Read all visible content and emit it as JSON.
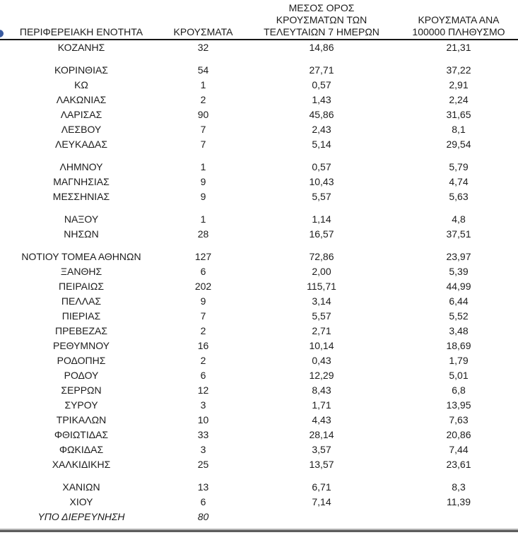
{
  "styles": {
    "header_rule_color": "#161616",
    "bottom_rule_light": "#b3b3b3",
    "bottom_rule_dark": "#5c5c5c",
    "bullet_color": "#3a5ba0"
  },
  "table": {
    "header": {
      "col1": "ΠΕΡΙΦΕΡΕΙΑΚΗ ΕΝΟΤΗΤΑ",
      "col2": "ΚΡΟΥΣΜΑΤΑ",
      "col3_lines": [
        "ΜΕΣΟΣ ΟΡΟΣ",
        "ΚΡΟΥΣΜΑΤΩΝ ΤΩΝ",
        "ΤΕΛΕΥΤΑΙΩΝ 7 ΗΜΕΡΩΝ"
      ],
      "col4_lines": [
        "ΚΡΟΥΣΜΑΤΑ ΑΝΑ",
        "100000 ΠΛΗΘΥΣΜΟ"
      ]
    },
    "groups": [
      {
        "rows": [
          {
            "region": "ΚΟΖΑΝΗΣ",
            "cases": "32",
            "avg7": "14,86",
            "per100k": "21,31"
          }
        ]
      },
      {
        "rows": [
          {
            "region": "ΚΟΡΙΝΘΙΑΣ",
            "cases": "54",
            "avg7": "27,71",
            "per100k": "37,22"
          },
          {
            "region": "ΚΩ",
            "cases": "1",
            "avg7": "0,57",
            "per100k": "2,91"
          },
          {
            "region": "ΛΑΚΩΝΙΑΣ",
            "cases": "2",
            "avg7": "1,43",
            "per100k": "2,24"
          },
          {
            "region": "ΛΑΡΙΣΑΣ",
            "cases": "90",
            "avg7": "45,86",
            "per100k": "31,65"
          },
          {
            "region": "ΛΕΣΒΟΥ",
            "cases": "7",
            "avg7": "2,43",
            "per100k": "8,1"
          },
          {
            "region": "ΛΕΥΚΑΔΑΣ",
            "cases": "7",
            "avg7": "5,14",
            "per100k": "29,54"
          }
        ]
      },
      {
        "rows": [
          {
            "region": "ΛΗΜΝΟΥ",
            "cases": "1",
            "avg7": "0,57",
            "per100k": "5,79"
          },
          {
            "region": "ΜΑΓΝΗΣΙΑΣ",
            "cases": "9",
            "avg7": "10,43",
            "per100k": "4,74"
          },
          {
            "region": "ΜΕΣΣΗΝΙΑΣ",
            "cases": "9",
            "avg7": "5,57",
            "per100k": "5,63"
          }
        ]
      },
      {
        "rows": [
          {
            "region": "ΝΑΞΟΥ",
            "cases": "1",
            "avg7": "1,14",
            "per100k": "4,8"
          },
          {
            "region": "ΝΗΣΩΝ",
            "cases": "28",
            "avg7": "16,57",
            "per100k": "37,51"
          }
        ]
      },
      {
        "rows": [
          {
            "region": "ΝΟΤΙΟΥ ΤΟΜΕΑ ΑΘΗΝΩΝ",
            "cases": "127",
            "avg7": "72,86",
            "per100k": "23,97"
          },
          {
            "region": "ΞΑΝΘΗΣ",
            "cases": "6",
            "avg7": "2,00",
            "per100k": "5,39"
          },
          {
            "region": "ΠΕΙΡΑΙΩΣ",
            "cases": "202",
            "avg7": "115,71",
            "per100k": "44,99"
          },
          {
            "region": "ΠΕΛΛΑΣ",
            "cases": "9",
            "avg7": "3,14",
            "per100k": "6,44"
          },
          {
            "region": "ΠΙΕΡΙΑΣ",
            "cases": "7",
            "avg7": "5,57",
            "per100k": "5,52"
          },
          {
            "region": "ΠΡΕΒΕΖΑΣ",
            "cases": "2",
            "avg7": "2,71",
            "per100k": "3,48"
          },
          {
            "region": "ΡΕΘΥΜΝΟΥ",
            "cases": "16",
            "avg7": "10,14",
            "per100k": "18,69"
          },
          {
            "region": "ΡΟΔΟΠΗΣ",
            "cases": "2",
            "avg7": "0,43",
            "per100k": "1,79"
          },
          {
            "region": "ΡΟΔΟΥ",
            "cases": "6",
            "avg7": "12,29",
            "per100k": "5,01"
          },
          {
            "region": "ΣΕΡΡΩΝ",
            "cases": "12",
            "avg7": "8,43",
            "per100k": "6,8"
          },
          {
            "region": "ΣΥΡΟΥ",
            "cases": "3",
            "avg7": "1,71",
            "per100k": "13,95"
          },
          {
            "region": "ΤΡΙΚΑΛΩΝ",
            "cases": "10",
            "avg7": "4,43",
            "per100k": "7,63"
          },
          {
            "region": "ΦΘΙΩΤΙΔΑΣ",
            "cases": "33",
            "avg7": "28,14",
            "per100k": "20,86"
          },
          {
            "region": "ΦΩΚΙΔΑΣ",
            "cases": "3",
            "avg7": "3,57",
            "per100k": "7,44"
          },
          {
            "region": "ΧΑΛΚΙΔΙΚΗΣ",
            "cases": "25",
            "avg7": "13,57",
            "per100k": "23,61"
          }
        ]
      },
      {
        "rows": [
          {
            "region": "ΧΑΝΙΩΝ",
            "cases": "13",
            "avg7": "6,71",
            "per100k": "8,3"
          },
          {
            "region": "ΧΙΟΥ",
            "cases": "6",
            "avg7": "7,14",
            "per100k": "11,39"
          },
          {
            "region": "ΥΠΟ ΔΙΕΡΕΥΝΗΣΗ",
            "cases": "80",
            "avg7": "",
            "per100k": "",
            "italic": true
          }
        ]
      }
    ]
  }
}
